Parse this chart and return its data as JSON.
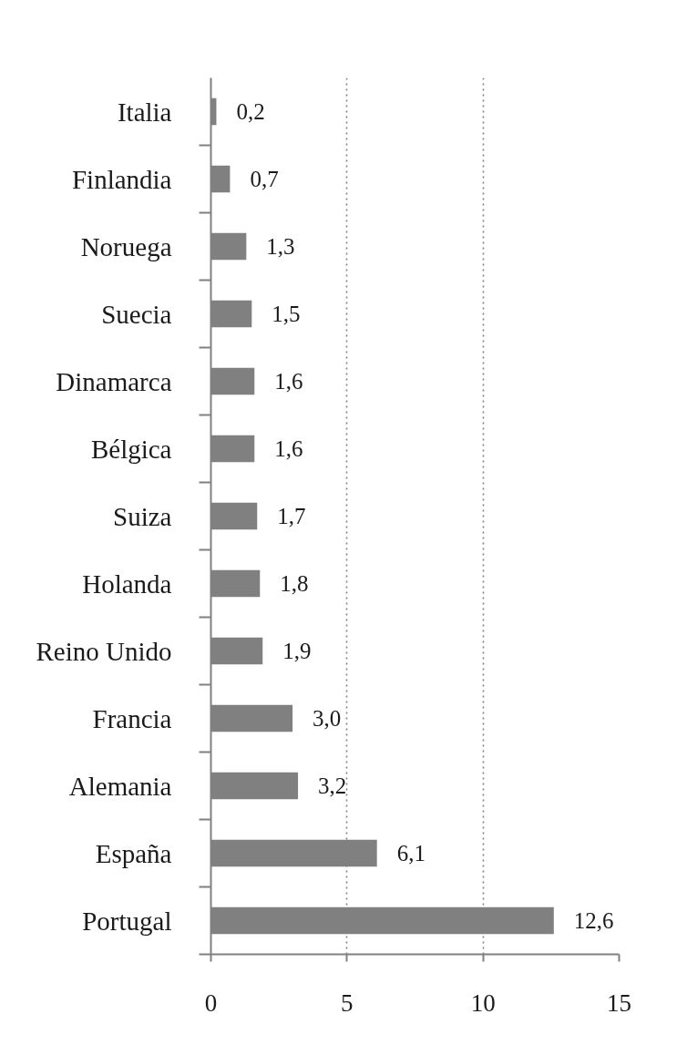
{
  "chart_data": {
    "type": "bar",
    "orientation": "horizontal",
    "categories": [
      "Italia",
      "Finlandia",
      "Noruega",
      "Suecia",
      "Dinamarca",
      "Bélgica",
      "Suiza",
      "Holanda",
      "Reino Unido",
      "Francia",
      "Alemania",
      "España",
      "Portugal"
    ],
    "values": [
      0.2,
      0.7,
      1.3,
      1.5,
      1.6,
      1.6,
      1.7,
      1.8,
      1.9,
      3.0,
      3.2,
      6.1,
      12.6
    ],
    "value_labels": [
      "0,2",
      "0,7",
      "1,3",
      "1,5",
      "1,6",
      "1,6",
      "1,7",
      "1,8",
      "1,9",
      "3,0",
      "3,2",
      "6,1",
      "12,6"
    ],
    "color": "#808080",
    "xlim": [
      0,
      15
    ],
    "xticks": [
      0,
      5,
      10,
      15
    ],
    "grid": "x"
  }
}
